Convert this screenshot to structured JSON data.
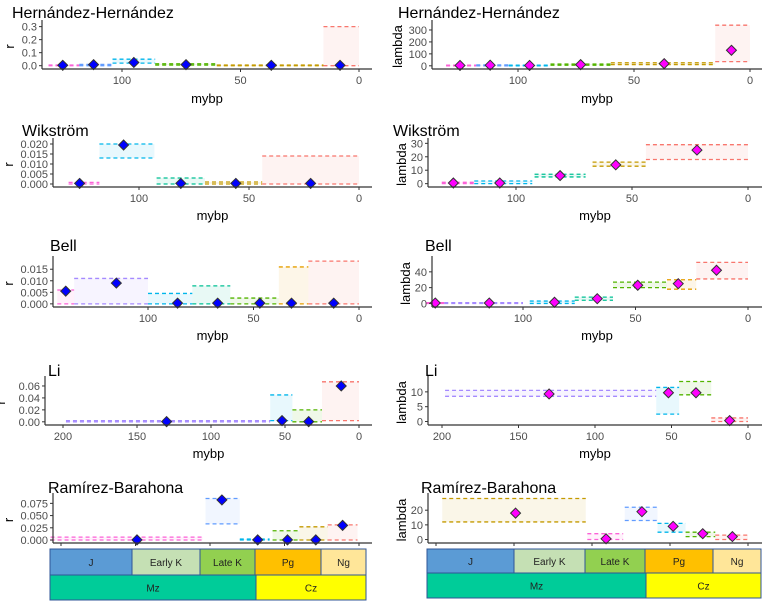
{
  "colors": {
    "red": "#F8766D",
    "orange": "#E69F00",
    "olive": "#C49A00",
    "green": "#53B400",
    "teal": "#00C094",
    "cyan": "#00B6EB",
    "blue": "#619CFF",
    "purple": "#A58AFF",
    "magenta": "#FB61D7",
    "r_point": "#0000FF",
    "lambda_point": "#FF00FF"
  },
  "timescale": {
    "periods": [
      {
        "label": "J",
        "color": "#5B9BD5"
      },
      {
        "label": "Early K",
        "color": "#C5E0B4"
      },
      {
        "label": "Late K",
        "color": "#92D050"
      },
      {
        "label": "Pg",
        "color": "#FFC000"
      },
      {
        "label": "Ng",
        "color": "#FFE699"
      }
    ],
    "eras": [
      {
        "label": "Mz",
        "color": "#00CC99"
      },
      {
        "label": "Cz",
        "color": "#FFFF00"
      }
    ]
  },
  "chart_data": [
    {
      "type": "scatter",
      "title": "Hernández-Hernández",
      "ylabel": "r",
      "xlabel": "mybp",
      "ylim": [
        -0.01,
        0.32
      ],
      "yticks": [
        "0.0",
        "0.1",
        "0.2",
        "0.3"
      ],
      "ytick_values": [
        0,
        0.1,
        0.2,
        0.3
      ],
      "xticks": [
        "100",
        "50",
        "0"
      ],
      "xtick_values": [
        100,
        50,
        0
      ],
      "intervals": [
        {
          "start": 131,
          "end": 118,
          "lo": 0,
          "hi": 0.005,
          "x": 125,
          "y": 0.003,
          "color": "magenta"
        },
        {
          "start": 118,
          "end": 104,
          "lo": 0,
          "hi": 0.01,
          "x": 112,
          "y": 0.008,
          "color": "blue"
        },
        {
          "start": 104,
          "end": 86,
          "lo": 0.02,
          "hi": 0.05,
          "x": 95,
          "y": 0.025,
          "color": "cyan"
        },
        {
          "start": 86,
          "end": 60,
          "lo": 0.005,
          "hi": 0.015,
          "x": 73,
          "y": 0.008,
          "color": "green"
        },
        {
          "start": 60,
          "end": 15,
          "lo": 0,
          "hi": 0.005,
          "x": 37,
          "y": 0.003,
          "color": "olive"
        },
        {
          "start": 15,
          "end": 0,
          "lo": 0,
          "hi": 0.3,
          "x": 8,
          "y": 0.003,
          "color": "red"
        }
      ]
    },
    {
      "type": "scatter",
      "title": "Hernández-Hernández",
      "ylabel": "lambda",
      "xlabel": "mybp",
      "ylim": [
        -10,
        350
      ],
      "yticks": [
        "0",
        "100",
        "200",
        "300"
      ],
      "ytick_values": [
        0,
        100,
        200,
        300
      ],
      "xticks": [
        "100",
        "50",
        "0"
      ],
      "xtick_values": [
        100,
        50,
        0
      ],
      "intervals": [
        {
          "start": 131,
          "end": 118,
          "lo": 0,
          "hi": 5,
          "x": 125,
          "y": 3,
          "color": "magenta"
        },
        {
          "start": 118,
          "end": 104,
          "lo": 0,
          "hi": 8,
          "x": 112,
          "y": 5,
          "color": "blue"
        },
        {
          "start": 104,
          "end": 86,
          "lo": 0,
          "hi": 6,
          "x": 95,
          "y": 3,
          "color": "cyan"
        },
        {
          "start": 86,
          "end": 60,
          "lo": 5,
          "hi": 15,
          "x": 73,
          "y": 10,
          "color": "green"
        },
        {
          "start": 60,
          "end": 15,
          "lo": 10,
          "hi": 25,
          "x": 37,
          "y": 18,
          "color": "olive"
        },
        {
          "start": 15,
          "end": 0,
          "lo": 35,
          "hi": 340,
          "x": 8,
          "y": 130,
          "color": "red"
        }
      ]
    },
    {
      "type": "scatter",
      "title": "Wikström",
      "ylabel": "r",
      "xlabel": "mybp",
      "ylim": [
        -0.0005,
        0.021
      ],
      "yticks": [
        "0.000",
        "0.005",
        "0.010",
        "0.015",
        "0.020"
      ],
      "ytick_values": [
        0,
        0.005,
        0.01,
        0.015,
        0.02
      ],
      "xticks": [
        "100",
        "50",
        "0"
      ],
      "xtick_values": [
        100,
        50,
        0
      ],
      "intervals": [
        {
          "start": 132,
          "end": 118,
          "lo": 0,
          "hi": 0.0008,
          "x": 127,
          "y": 0.0003,
          "color": "magenta"
        },
        {
          "start": 118,
          "end": 93,
          "lo": 0.013,
          "hi": 0.02,
          "x": 107,
          "y": 0.0195,
          "color": "cyan"
        },
        {
          "start": 92,
          "end": 70,
          "lo": 0,
          "hi": 0.003,
          "x": 81,
          "y": 0.0003,
          "color": "teal"
        },
        {
          "start": 70,
          "end": 44,
          "lo": 0,
          "hi": 0.001,
          "x": 56,
          "y": 0.0003,
          "color": "olive"
        },
        {
          "start": 44,
          "end": 0,
          "lo": 0,
          "hi": 0.014,
          "x": 22,
          "y": 0.0003,
          "color": "red"
        }
      ]
    },
    {
      "type": "scatter",
      "title": "Wikström",
      "ylabel": "lambda",
      "xlabel": "mybp",
      "ylim": [
        -1,
        31
      ],
      "yticks": [
        "0",
        "10",
        "20",
        "30"
      ],
      "ytick_values": [
        0,
        10,
        20,
        30
      ],
      "xticks": [
        "100",
        "50",
        "0"
      ],
      "xtick_values": [
        100,
        50,
        0
      ],
      "intervals": [
        {
          "start": 132,
          "end": 118,
          "lo": 0,
          "hi": 1,
          "x": 127,
          "y": 0.5,
          "color": "magenta"
        },
        {
          "start": 118,
          "end": 93,
          "lo": 0,
          "hi": 2,
          "x": 107,
          "y": 0.5,
          "color": "cyan"
        },
        {
          "start": 92,
          "end": 70,
          "lo": 5,
          "hi": 7,
          "x": 81,
          "y": 6,
          "color": "teal"
        },
        {
          "start": 67,
          "end": 44,
          "lo": 13,
          "hi": 16,
          "x": 57,
          "y": 14,
          "color": "olive"
        },
        {
          "start": 44,
          "end": 0,
          "lo": 18,
          "hi": 29,
          "x": 22,
          "y": 25,
          "color": "red"
        }
      ]
    },
    {
      "type": "scatter",
      "title": "Bell",
      "ylabel": "r",
      "xlabel": "mybp",
      "ylim": [
        -0.0005,
        0.019
      ],
      "yticks": [
        "0.000",
        "0.005",
        "0.010",
        "0.015"
      ],
      "ytick_values": [
        0,
        0.005,
        0.01,
        0.015
      ],
      "xticks": [
        "100",
        "50",
        "0"
      ],
      "xtick_values": [
        100,
        50,
        0
      ],
      "intervals": [
        {
          "start": 143,
          "end": 135,
          "lo": 0,
          "hi": 0.006,
          "x": 139,
          "y": 0.0055,
          "color": "magenta"
        },
        {
          "start": 135,
          "end": 100,
          "lo": 0,
          "hi": 0.011,
          "x": 115,
          "y": 0.009,
          "color": "purple"
        },
        {
          "start": 100,
          "end": 79,
          "lo": 0,
          "hi": 0.0045,
          "x": 86,
          "y": 0.0003,
          "color": "cyan"
        },
        {
          "start": 79,
          "end": 61,
          "lo": 0,
          "hi": 0.0078,
          "x": 67,
          "y": 0.0003,
          "color": "teal"
        },
        {
          "start": 61,
          "end": 38,
          "lo": 0,
          "hi": 0.0025,
          "x": 47,
          "y": 0.0003,
          "color": "green"
        },
        {
          "start": 38,
          "end": 24,
          "lo": 0,
          "hi": 0.016,
          "x": 32,
          "y": 0.0003,
          "color": "orange"
        },
        {
          "start": 24,
          "end": 0,
          "lo": 0,
          "hi": 0.0185,
          "x": 12,
          "y": 0.0003,
          "color": "red"
        }
      ]
    },
    {
      "type": "scatter",
      "title": "Bell",
      "ylabel": "lambda",
      "xlabel": "mybp",
      "ylim": [
        -2,
        55
      ],
      "yticks": [
        "0",
        "20",
        "40"
      ],
      "ytick_values": [
        0,
        20,
        40
      ],
      "xticks": [
        "100",
        "50",
        "0"
      ],
      "xtick_values": [
        100,
        50,
        0
      ],
      "intervals": [
        {
          "start": 143,
          "end": 135,
          "lo": 0,
          "hi": 1,
          "x": 139,
          "y": 0.5,
          "color": "magenta"
        },
        {
          "start": 135,
          "end": 100,
          "lo": 0,
          "hi": 1,
          "x": 115,
          "y": 0.5,
          "color": "purple"
        },
        {
          "start": 97,
          "end": 77,
          "lo": 0,
          "hi": 3,
          "x": 86,
          "y": 1.5,
          "color": "cyan"
        },
        {
          "start": 77,
          "end": 60,
          "lo": 4,
          "hi": 8,
          "x": 67,
          "y": 6,
          "color": "teal"
        },
        {
          "start": 60,
          "end": 36,
          "lo": 20,
          "hi": 27,
          "x": 49,
          "y": 23,
          "color": "green"
        },
        {
          "start": 36,
          "end": 23,
          "lo": 18,
          "hi": 30,
          "x": 31,
          "y": 25,
          "color": "orange"
        },
        {
          "start": 23,
          "end": 0,
          "lo": 31,
          "hi": 52,
          "x": 14,
          "y": 42,
          "color": "red"
        }
      ]
    },
    {
      "type": "scatter",
      "title": "Li",
      "ylabel": "r",
      "xlabel": "mybp",
      "ylim": [
        -0.002,
        0.07
      ],
      "yticks": [
        "0.00",
        "0.02",
        "0.04",
        "0.06"
      ],
      "ytick_values": [
        0,
        0.02,
        0.04,
        0.06
      ],
      "xticks": [
        "200",
        "150",
        "100",
        "50",
        "0"
      ],
      "xtick_values": [
        200,
        150,
        100,
        50,
        0
      ],
      "intervals": [
        {
          "start": 198,
          "end": 60,
          "lo": 0,
          "hi": 0.002,
          "x": 130,
          "y": 0.0003,
          "color": "purple"
        },
        {
          "start": 60,
          "end": 45,
          "lo": 0.002,
          "hi": 0.045,
          "x": 52,
          "y": 0.002,
          "color": "cyan"
        },
        {
          "start": 45,
          "end": 25,
          "lo": 0,
          "hi": 0.02,
          "x": 34,
          "y": 0.0003,
          "color": "green"
        },
        {
          "start": 25,
          "end": 0,
          "lo": 0.002,
          "hi": 0.067,
          "x": 12,
          "y": 0.06,
          "color": "red"
        }
      ]
    },
    {
      "type": "scatter",
      "title": "Li",
      "ylabel": "lambda",
      "xlabel": "mybp",
      "ylim": [
        -0.5,
        14
      ],
      "yticks": [
        "0",
        "5",
        "10"
      ],
      "ytick_values": [
        0,
        5,
        10
      ],
      "xticks": [
        "200",
        "150",
        "100",
        "50",
        "0"
      ],
      "xtick_values": [
        200,
        150,
        100,
        50,
        0
      ],
      "intervals": [
        {
          "start": 198,
          "end": 60,
          "lo": 8.5,
          "hi": 10.5,
          "x": 130,
          "y": 9.3,
          "color": "purple"
        },
        {
          "start": 60,
          "end": 45,
          "lo": 2.5,
          "hi": 11.5,
          "x": 52,
          "y": 9.7,
          "color": "cyan"
        },
        {
          "start": 45,
          "end": 24,
          "lo": 9,
          "hi": 13.5,
          "x": 34,
          "y": 9.7,
          "color": "green"
        },
        {
          "start": 24,
          "end": 0,
          "lo": 0,
          "hi": 1.2,
          "x": 12,
          "y": 0.3,
          "color": "red"
        }
      ]
    },
    {
      "type": "scatter",
      "title": "Ramírez-Barahona",
      "ylabel": "r",
      "xlabel": "",
      "ylim": [
        -0.002,
        0.088
      ],
      "yticks": [
        "0.000",
        "0.025",
        "0.050",
        "0.075"
      ],
      "ytick_values": [
        0,
        0.025,
        0.05,
        0.075
      ],
      "xticks": [],
      "xtick_values": [
        200,
        150,
        100,
        50,
        0
      ],
      "intervals": [
        {
          "start": 207,
          "end": 105,
          "lo": 0,
          "hi": 0.006,
          "x": 149,
          "y": 0.0003,
          "color": "magenta"
        },
        {
          "start": 103,
          "end": 80,
          "lo": 0.033,
          "hi": 0.085,
          "x": 92,
          "y": 0.082,
          "color": "blue"
        },
        {
          "start": 80,
          "end": 60,
          "lo": 0,
          "hi": 0.002,
          "x": 68,
          "y": 0.0003,
          "color": "cyan"
        },
        {
          "start": 58,
          "end": 40,
          "lo": 0,
          "hi": 0.019,
          "x": 48,
          "y": 0.0003,
          "color": "green"
        },
        {
          "start": 40,
          "end": 21,
          "lo": 0,
          "hi": 0.027,
          "x": 29,
          "y": 0.0003,
          "color": "olive"
        },
        {
          "start": 21,
          "end": 1,
          "lo": 0,
          "hi": 0.031,
          "x": 11,
          "y": 0.03,
          "color": "red"
        }
      ]
    },
    {
      "type": "scatter",
      "title": "Ramírez-Barahona",
      "ylabel": "lambda",
      "xlabel": "",
      "ylim": [
        -1,
        29
      ],
      "yticks": [
        "0",
        "10",
        "20"
      ],
      "ytick_values": [
        0,
        10,
        20
      ],
      "xticks": [],
      "xtick_values": [
        200,
        150,
        100,
        50,
        0
      ],
      "intervals": [
        {
          "start": 196,
          "end": 104,
          "lo": 12,
          "hi": 28,
          "x": 149,
          "y": 18,
          "color": "olive"
        },
        {
          "start": 103,
          "end": 80,
          "lo": 0,
          "hi": 4,
          "x": 91,
          "y": 0.5,
          "color": "magenta"
        },
        {
          "start": 79,
          "end": 58,
          "lo": 13,
          "hi": 22,
          "x": 68,
          "y": 19,
          "color": "blue"
        },
        {
          "start": 58,
          "end": 40,
          "lo": 5,
          "hi": 11,
          "x": 48,
          "y": 9,
          "color": "cyan"
        },
        {
          "start": 40,
          "end": 21,
          "lo": 2,
          "hi": 5,
          "x": 29,
          "y": 4,
          "color": "green"
        },
        {
          "start": 21,
          "end": 0,
          "lo": 0,
          "hi": 3,
          "x": 10,
          "y": 2,
          "color": "red"
        }
      ]
    }
  ]
}
